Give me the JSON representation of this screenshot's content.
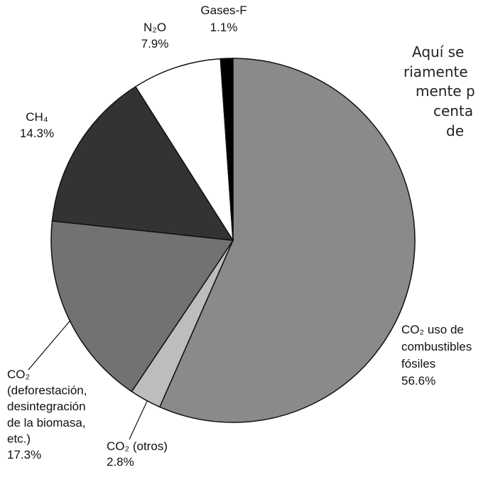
{
  "chart_data": {
    "type": "pie",
    "categories": [
      "CO₂ uso de\ncombustibles\nfósiles",
      "CO₂ (otros)",
      "CO₂\n(deforestación,\ndesintegración\nde la biomasa,\netc.)",
      "CH₄",
      "N₂O",
      "Gases-F"
    ],
    "values": [
      56.6,
      2.8,
      17.3,
      14.3,
      7.9,
      1.1
    ],
    "value_labels": [
      "56.6%",
      "2.8%",
      "17.3%",
      "14.3%",
      "7.9%",
      "1.1%"
    ],
    "colors": [
      "#8a8a8a",
      "#bdbdbd",
      "#727272",
      "#333333",
      "#ffffff",
      "#000000"
    ]
  },
  "side_text": [
    "Aquí se",
    "riamente",
    "mente p",
    "centa",
    "de"
  ]
}
